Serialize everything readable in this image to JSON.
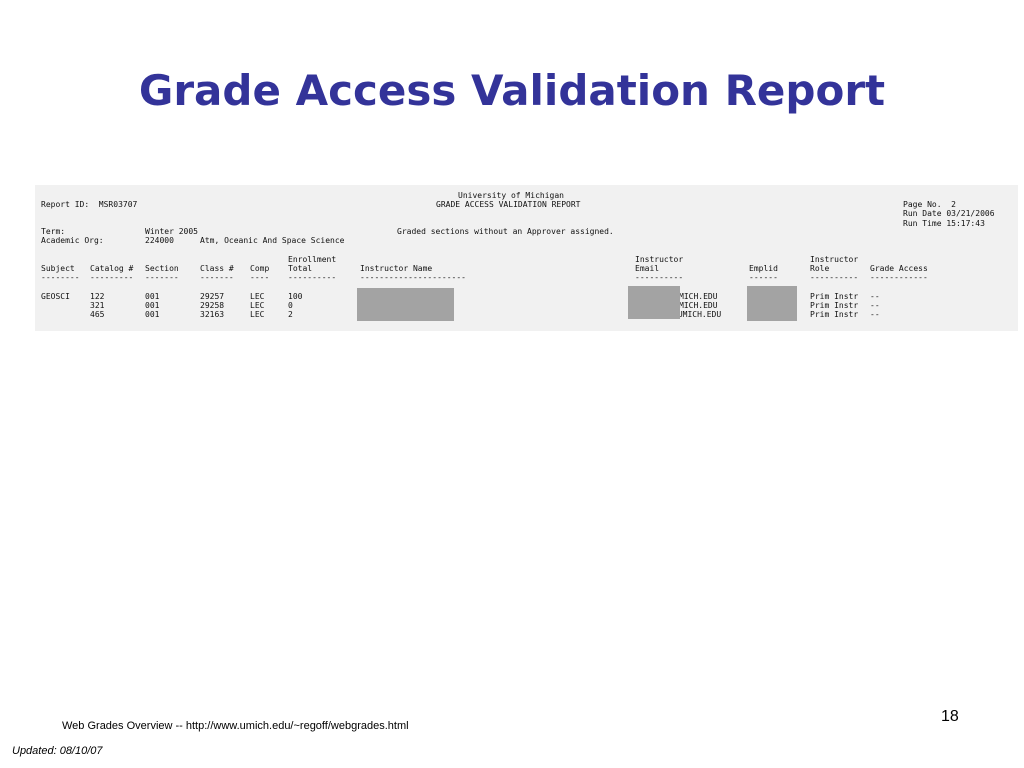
{
  "slide": {
    "title": "Grade Access Validation Report",
    "page_number": "18",
    "footer_text": "Web Grades Overview -- http://www.umich.edu/~regoff/webgrades.html",
    "updated": "Updated:  08/10/07"
  },
  "report": {
    "university": "University of Michigan",
    "report_id": "Report ID:  MSR03707",
    "report_name": "GRADE ACCESS VALIDATION REPORT",
    "page_no": "Page No.  2",
    "run_date": "Run Date 03/21/2006",
    "run_time": "Run Time 15:17:43",
    "term_label": "Term:",
    "term_value": "Winter 2005",
    "note": "Graded sections without an Approver assigned.",
    "org_label": "Academic Org:",
    "org_code": "224000",
    "org_name": "Atm, Oceanic And Space Science",
    "headers": {
      "enrollment_top": "Enrollment",
      "instructor_top_1": "Instructor",
      "instructor_top_2": "Instructor",
      "subject": "Subject",
      "catalog": "Catalog #",
      "section": "Section",
      "class_no": "Class #",
      "comp": "Comp",
      "total": "Total",
      "instructor_name": "Instructor Name",
      "email": "Email",
      "emplid": "Emplid",
      "role": "Role",
      "grade_access": "Grade Access"
    },
    "dashes": {
      "subject": "--------",
      "catalog": "---------",
      "section": "-------",
      "class_no": "-------",
      "comp": "----",
      "total": "----------",
      "instructor_name": "----------------------",
      "email": "----------",
      "emplid": "------",
      "role": "----------",
      "grade_access": "------------"
    },
    "rows": [
      {
        "subject": "GEOSCI",
        "catalog": "122",
        "section": "001",
        "class_no": "29257",
        "comp": "LEC",
        "total": "100",
        "email": "MICH.EDU",
        "role": "Prim Instr",
        "grade_access": "--"
      },
      {
        "subject": "",
        "catalog": "321",
        "section": "001",
        "class_no": "29258",
        "comp": "LEC",
        "total": "0",
        "email": "MICH.EDU",
        "role": "Prim Instr",
        "grade_access": "--"
      },
      {
        "subject": "",
        "catalog": "465",
        "section": "001",
        "class_no": "32163",
        "comp": "LEC",
        "total": "2",
        "email": "@UMICH.EDU",
        "role": "Prim Instr",
        "grade_access": "--"
      }
    ]
  }
}
